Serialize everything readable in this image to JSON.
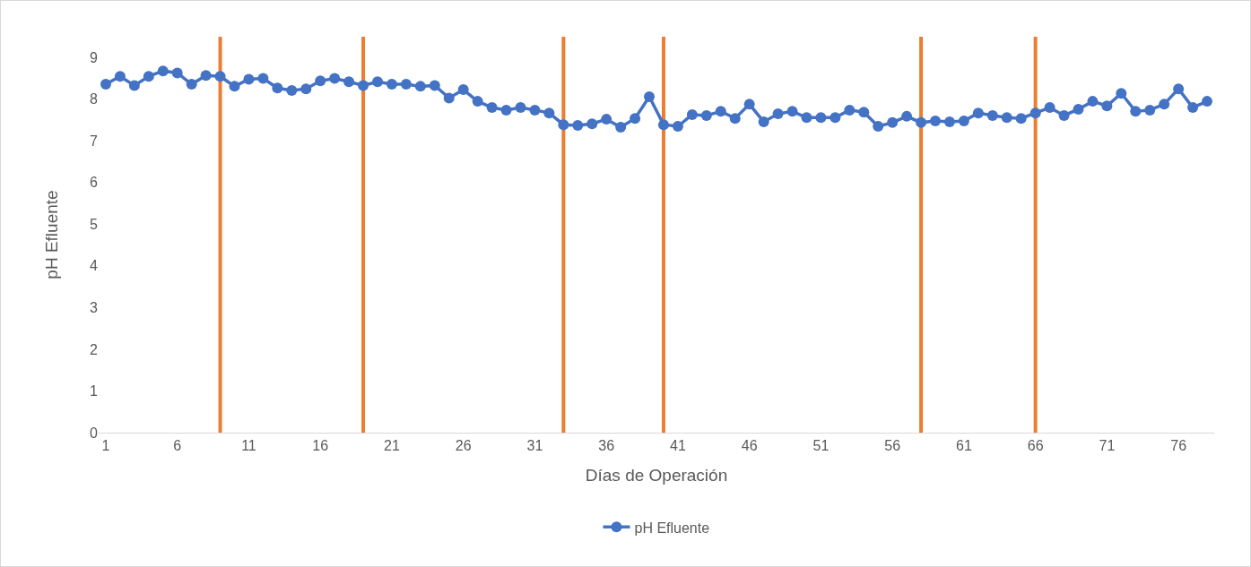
{
  "chart_data": {
    "type": "line",
    "xlabel": "Días de Operación",
    "ylabel": "pH Efluente",
    "x": [
      1,
      2,
      3,
      4,
      5,
      6,
      7,
      8,
      9,
      10,
      11,
      12,
      13,
      14,
      15,
      16,
      17,
      18,
      19,
      20,
      21,
      22,
      23,
      24,
      25,
      26,
      27,
      28,
      29,
      30,
      31,
      32,
      33,
      34,
      35,
      36,
      37,
      38,
      39,
      40,
      41,
      42,
      43,
      44,
      45,
      46,
      47,
      48,
      49,
      50,
      51,
      52,
      53,
      54,
      55,
      56,
      57,
      58,
      59,
      60,
      61,
      62,
      63,
      64,
      65,
      66,
      67,
      68,
      69,
      70,
      71,
      72,
      73,
      74,
      75,
      76,
      77,
      78
    ],
    "series": [
      {
        "name": "pH Efluente",
        "color": "#4472c4",
        "values": [
          8.36,
          8.55,
          8.33,
          8.55,
          8.68,
          8.63,
          8.36,
          8.57,
          8.55,
          8.31,
          8.48,
          8.5,
          8.27,
          8.21,
          8.25,
          8.44,
          8.5,
          8.42,
          8.33,
          8.42,
          8.36,
          8.36,
          8.31,
          8.33,
          8.03,
          8.23,
          7.95,
          7.8,
          7.74,
          7.8,
          7.74,
          7.67,
          7.39,
          7.37,
          7.41,
          7.52,
          7.33,
          7.54,
          8.06,
          7.39,
          7.35,
          7.63,
          7.61,
          7.71,
          7.54,
          7.88,
          7.46,
          7.65,
          7.71,
          7.56,
          7.56,
          7.56,
          7.74,
          7.69,
          7.35,
          7.44,
          7.59,
          7.44,
          7.48,
          7.46,
          7.48,
          7.67,
          7.61,
          7.56,
          7.54,
          7.67,
          7.8,
          7.61,
          7.76,
          7.95,
          7.84,
          8.14,
          7.71,
          7.74,
          7.88,
          8.25,
          7.8,
          7.95
        ]
      }
    ],
    "xlim": [
      0.5,
      78.5
    ],
    "xticks": [
      1,
      6,
      11,
      16,
      21,
      26,
      31,
      36,
      41,
      46,
      51,
      56,
      61,
      66,
      71,
      76
    ],
    "ylim": [
      0,
      9.5
    ],
    "yticks": [
      0,
      1,
      2,
      3,
      4,
      5,
      6,
      7,
      8,
      9
    ],
    "ref_lines": [
      {
        "axis": "x",
        "value": 9,
        "color": "#ed7d31"
      },
      {
        "axis": "x",
        "value": 19,
        "color": "#ed7d31"
      },
      {
        "axis": "x",
        "value": 33,
        "color": "#ed7d31"
      },
      {
        "axis": "x",
        "value": 40,
        "color": "#ed7d31"
      },
      {
        "axis": "x",
        "value": 58,
        "color": "#ed7d31"
      },
      {
        "axis": "x",
        "value": 66,
        "color": "#ed7d31"
      }
    ],
    "grid": false,
    "legend": "bottom",
    "marker": "circle",
    "line_style": "solid"
  }
}
